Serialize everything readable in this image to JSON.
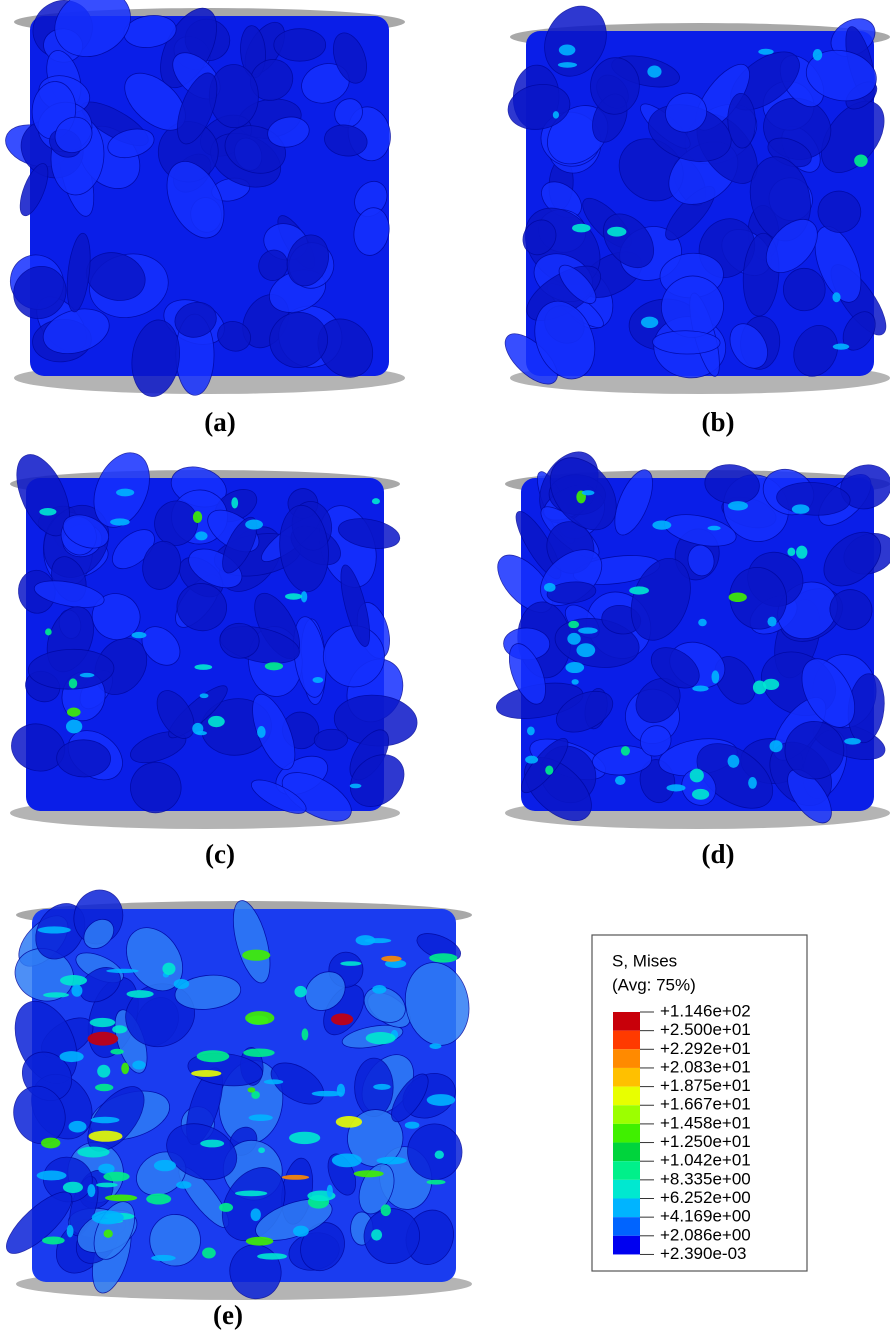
{
  "panels": [
    {
      "label": "(a)"
    },
    {
      "label": "(b)"
    },
    {
      "label": "(c)"
    },
    {
      "label": "(d)"
    },
    {
      "label": "(e)"
    }
  ],
  "legend": {
    "title": "S, Mises",
    "subtitle": "(Avg: 75%)",
    "labels": [
      "+1.146e+02",
      "+2.500e+01",
      "+2.292e+01",
      "+2.083e+01",
      "+1.875e+01",
      "+1.667e+01",
      "+1.458e+01",
      "+1.250e+01",
      "+1.042e+01",
      "+8.335e+00",
      "+6.252e+00",
      "+4.169e+00",
      "+2.086e+00",
      "+2.390e-03"
    ],
    "colors": [
      "#c8000a",
      "#ff3a00",
      "#ff8a00",
      "#ffc000",
      "#e8ff00",
      "#9cff00",
      "#40f000",
      "#00d43c",
      "#00f08a",
      "#00e8d0",
      "#00b4ff",
      "#0064ff",
      "#0000f0"
    ]
  }
}
